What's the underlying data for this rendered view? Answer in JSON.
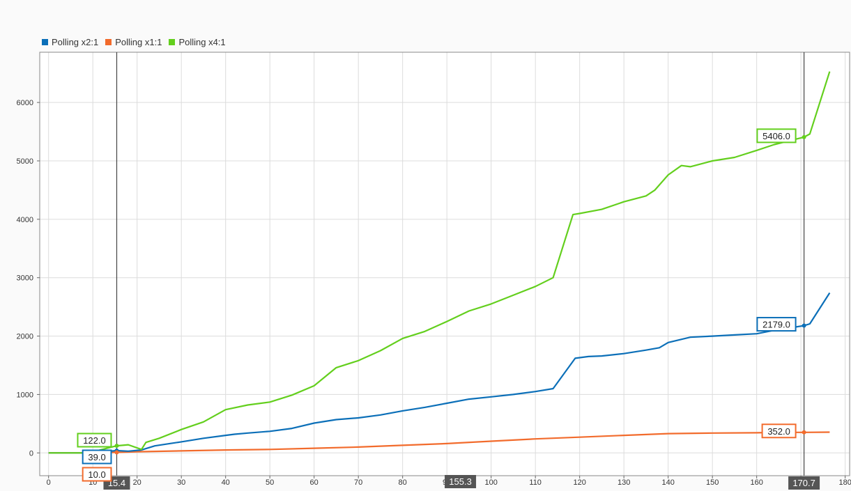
{
  "chart_data": {
    "type": "line",
    "title": "",
    "xlabel": "",
    "ylabel": "",
    "xlim": [
      -2,
      181
    ],
    "ylim": [
      -390,
      6860
    ],
    "x_ticks": [
      0,
      10,
      20,
      30,
      40,
      50,
      60,
      70,
      80,
      90,
      100,
      110,
      120,
      130,
      140,
      150,
      160,
      170,
      180
    ],
    "y_ticks": [
      0,
      1000,
      2000,
      3000,
      4000,
      5000,
      6000
    ],
    "grid": true,
    "legend_position": "top-left",
    "series": [
      {
        "name": "Polling x2:1",
        "color": "#0b6fb8",
        "x": [
          0,
          9,
          15.4,
          18,
          21,
          24,
          30,
          35,
          40,
          42,
          45,
          50,
          55,
          60,
          65,
          70,
          75,
          80,
          85,
          90,
          95,
          100,
          105,
          110,
          114,
          119,
          122,
          125,
          130,
          135,
          138,
          140,
          145,
          150,
          155,
          160,
          164,
          170.7,
          172,
          176.5
        ],
        "y": [
          0,
          0,
          39,
          30,
          50,
          120,
          190,
          250,
          300,
          320,
          340,
          370,
          420,
          510,
          570,
          600,
          650,
          720,
          780,
          850,
          920,
          960,
          1000,
          1050,
          1100,
          1620,
          1650,
          1660,
          1700,
          1760,
          1800,
          1890,
          1980,
          2000,
          2020,
          2040,
          2100,
          2179,
          2210,
          2740
        ]
      },
      {
        "name": "Polling x1:1",
        "color": "#f26b2c",
        "x": [
          0,
          9,
          15.4,
          20,
          30,
          40,
          50,
          60,
          70,
          80,
          90,
          100,
          110,
          120,
          130,
          140,
          150,
          160,
          164,
          170.7,
          176.5
        ],
        "y": [
          0,
          0,
          10,
          20,
          35,
          50,
          60,
          80,
          100,
          130,
          160,
          200,
          240,
          270,
          300,
          330,
          340,
          345,
          350,
          352,
          355
        ]
      },
      {
        "name": "Polling x4:1",
        "color": "#63cf1d",
        "x": [
          0,
          9,
          15.4,
          18,
          21,
          22,
          25,
          30,
          35,
          40,
          45,
          50,
          55,
          60,
          65,
          70,
          75,
          80,
          85,
          90,
          95,
          100,
          105,
          110,
          114,
          118.5,
          120,
          125,
          130,
          135,
          137,
          140,
          143,
          145,
          150,
          155,
          160,
          164,
          170.7,
          172,
          176.5
        ],
        "y": [
          0,
          0,
          122,
          140,
          60,
          180,
          250,
          400,
          530,
          740,
          820,
          870,
          990,
          1150,
          1460,
          1580,
          1750,
          1960,
          2080,
          2250,
          2430,
          2550,
          2700,
          2850,
          3000,
          4080,
          4100,
          4170,
          4300,
          4400,
          4500,
          4760,
          4920,
          4900,
          5000,
          5060,
          5180,
          5280,
          5406,
          5460,
          6530
        ]
      }
    ],
    "cursors": [
      {
        "label": "15.4",
        "x": 15.4
      },
      {
        "label": "170.7",
        "x": 170.7
      }
    ],
    "delta_label": "155.3",
    "annotations": {
      "left": [
        {
          "series": 2,
          "text": "122.0",
          "color": "#63cf1d"
        },
        {
          "series": 0,
          "text": "39.0",
          "color": "#0b6fb8"
        },
        {
          "series": 1,
          "text": "10.0",
          "color": "#f26b2c"
        }
      ],
      "right": [
        {
          "series": 2,
          "text": "5406.0",
          "color": "#63cf1d"
        },
        {
          "series": 0,
          "text": "2179.0",
          "color": "#0b6fb8"
        },
        {
          "series": 1,
          "text": "352.0",
          "color": "#f26b2c"
        }
      ]
    }
  }
}
